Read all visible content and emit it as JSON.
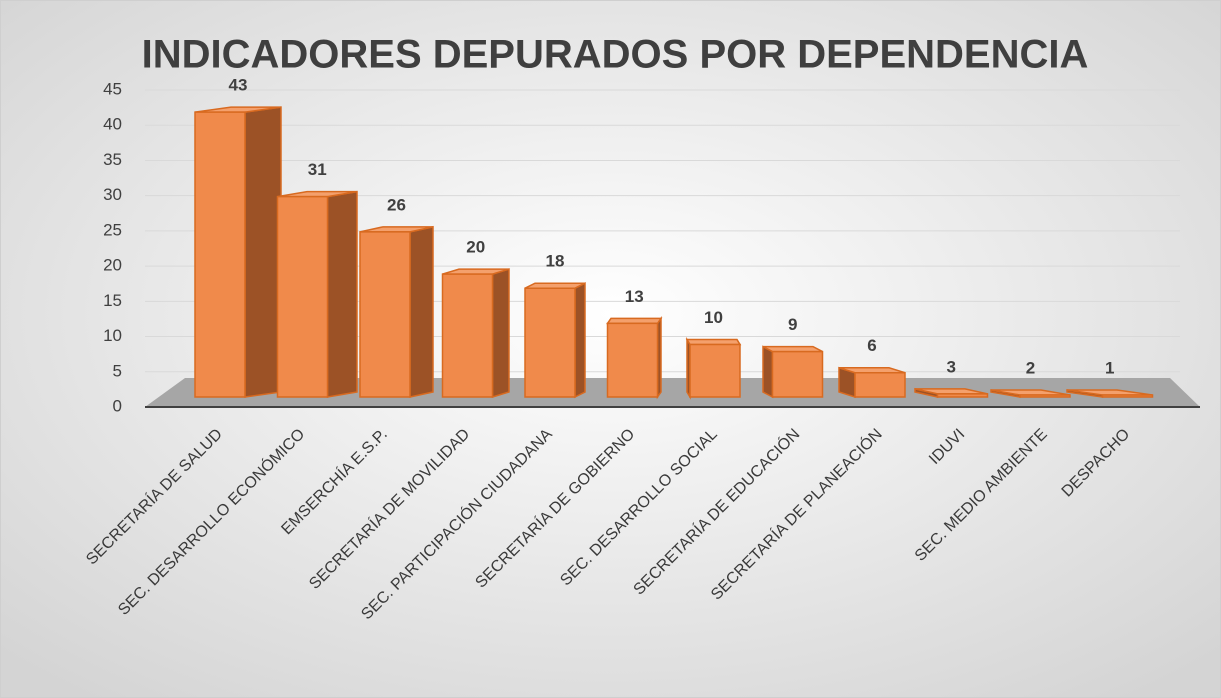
{
  "chart_data": {
    "type": "bar",
    "title": "INDICADORES DEPURADOS POR DEPENDENCIA",
    "categories": [
      "SECRETARÍA DE SALUD",
      "SEC. DESARROLLO ECONÓMICO",
      "EMSERCHÍA E.S.P.",
      "SECRETARÍA DE MOVILIDAD",
      "SEC. PARTICIPACIÓN CIUDADANA",
      "SECRETARÍA DE GOBIERNO",
      "SEC. DESARROLLO SOCIAL",
      "SECRETARÍA DE EDUCACIÓN",
      "SECRETARÍA DE PLANEACIÓN",
      "IDUVI",
      "SEC. MEDIO AMBIENTE",
      "DESPACHO"
    ],
    "values": [
      43,
      31,
      26,
      20,
      18,
      13,
      10,
      9,
      6,
      3,
      2,
      1
    ],
    "color": "#f08a4b",
    "ylim": [
      0,
      45
    ],
    "yticks": [
      0,
      5,
      10,
      15,
      20,
      25,
      30,
      35,
      40,
      45
    ],
    "grid": true
  }
}
